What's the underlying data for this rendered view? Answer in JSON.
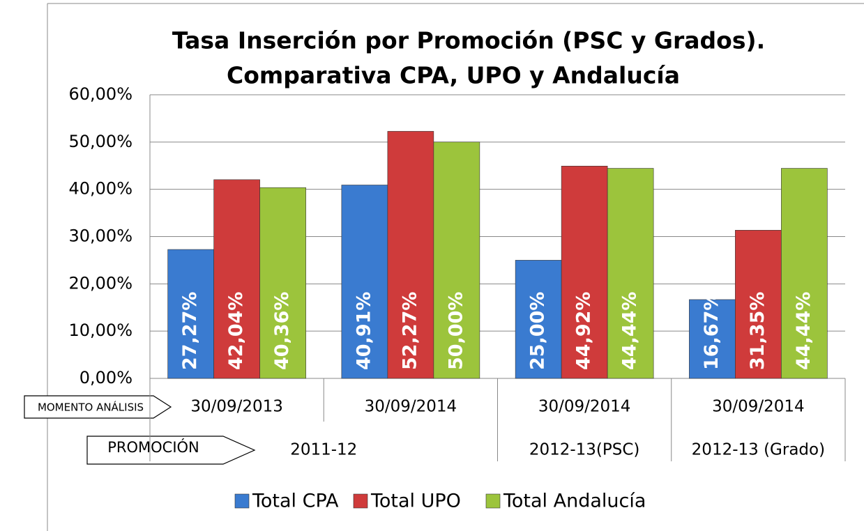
{
  "chart_data": {
    "type": "bar",
    "title": [
      "Tasa Inserción por Promoción (PSC y Grados).",
      "Comparativa CPA, UPO y Andalucía"
    ],
    "categories": [
      "30/09/2013",
      "30/09/2014",
      "30/09/2014",
      "30/09/2014"
    ],
    "category_groups": [
      {
        "label": "2011-12",
        "span": 2
      },
      {
        "label": "2012-13(PSC)",
        "span": 1
      },
      {
        "label": "2012-13 (Grado)",
        "span": 1
      }
    ],
    "annotations": [
      "MOMENTO ANÁLISIS",
      "PROMOCIÓN"
    ],
    "series": [
      {
        "name": "Total CPA",
        "color": "#3a7bd0",
        "values": [
          27.27,
          40.91,
          25.0,
          16.67
        ],
        "value_labels": [
          "27,27%",
          "40,91%",
          "25,00%",
          "16,67%"
        ]
      },
      {
        "name": "Total UPO",
        "color": "#cf3b3b",
        "values": [
          42.04,
          52.27,
          44.92,
          31.35
        ],
        "value_labels": [
          "42,04%",
          "52,27%",
          "44,92%",
          "31,35%"
        ]
      },
      {
        "name": "Total Andalucía",
        "color": "#9cc43c",
        "values": [
          40.36,
          50.0,
          44.44,
          44.44
        ],
        "value_labels": [
          "40,36%",
          "50,00%",
          "44,44%",
          "44,44%"
        ]
      }
    ],
    "ylim": [
      0,
      60
    ],
    "yticks": [
      {
        "value": 0,
        "label": "0,00%"
      },
      {
        "value": 10,
        "label": "10,00%"
      },
      {
        "value": 20,
        "label": "20,00%"
      },
      {
        "value": 30,
        "label": "30,00%"
      },
      {
        "value": 40,
        "label": "40,00%"
      },
      {
        "value": 50,
        "label": "50,00%"
      },
      {
        "value": 60,
        "label": "60,00%"
      }
    ],
    "grid": true,
    "legend": "bottom"
  }
}
